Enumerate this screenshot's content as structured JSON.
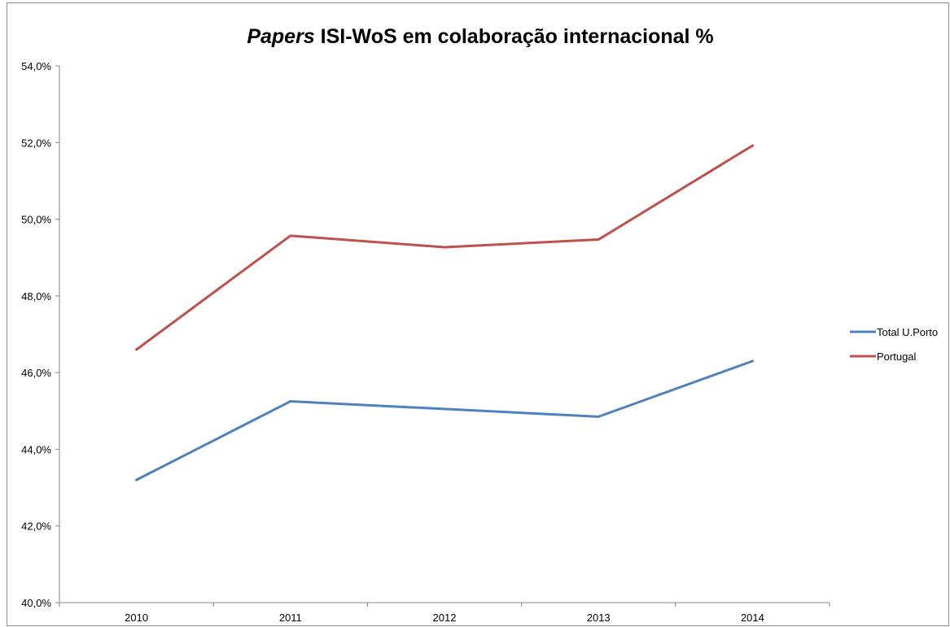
{
  "chart_data": {
    "type": "line",
    "title_italic": "Papers",
    "title_rest": " ISI-WoS em colaboração internacional %",
    "categories": [
      "2010",
      "2011",
      "2012",
      "2013",
      "2014"
    ],
    "series": [
      {
        "name": "Total U.Porto",
        "color": "#4f81bd",
        "values": [
          43.2,
          45.25,
          45.05,
          44.85,
          46.3
        ]
      },
      {
        "name": "Portugal",
        "color": "#c0504d",
        "values": [
          46.6,
          49.57,
          49.27,
          49.47,
          51.92
        ]
      }
    ],
    "ylim": [
      40,
      54
    ],
    "ystep": 2,
    "ytick_labels": [
      "40,0%",
      "42,0%",
      "44,0%",
      "46,0%",
      "48,0%",
      "50,0%",
      "52,0%",
      "54,0%"
    ],
    "grid": false,
    "legend_position": "right"
  }
}
